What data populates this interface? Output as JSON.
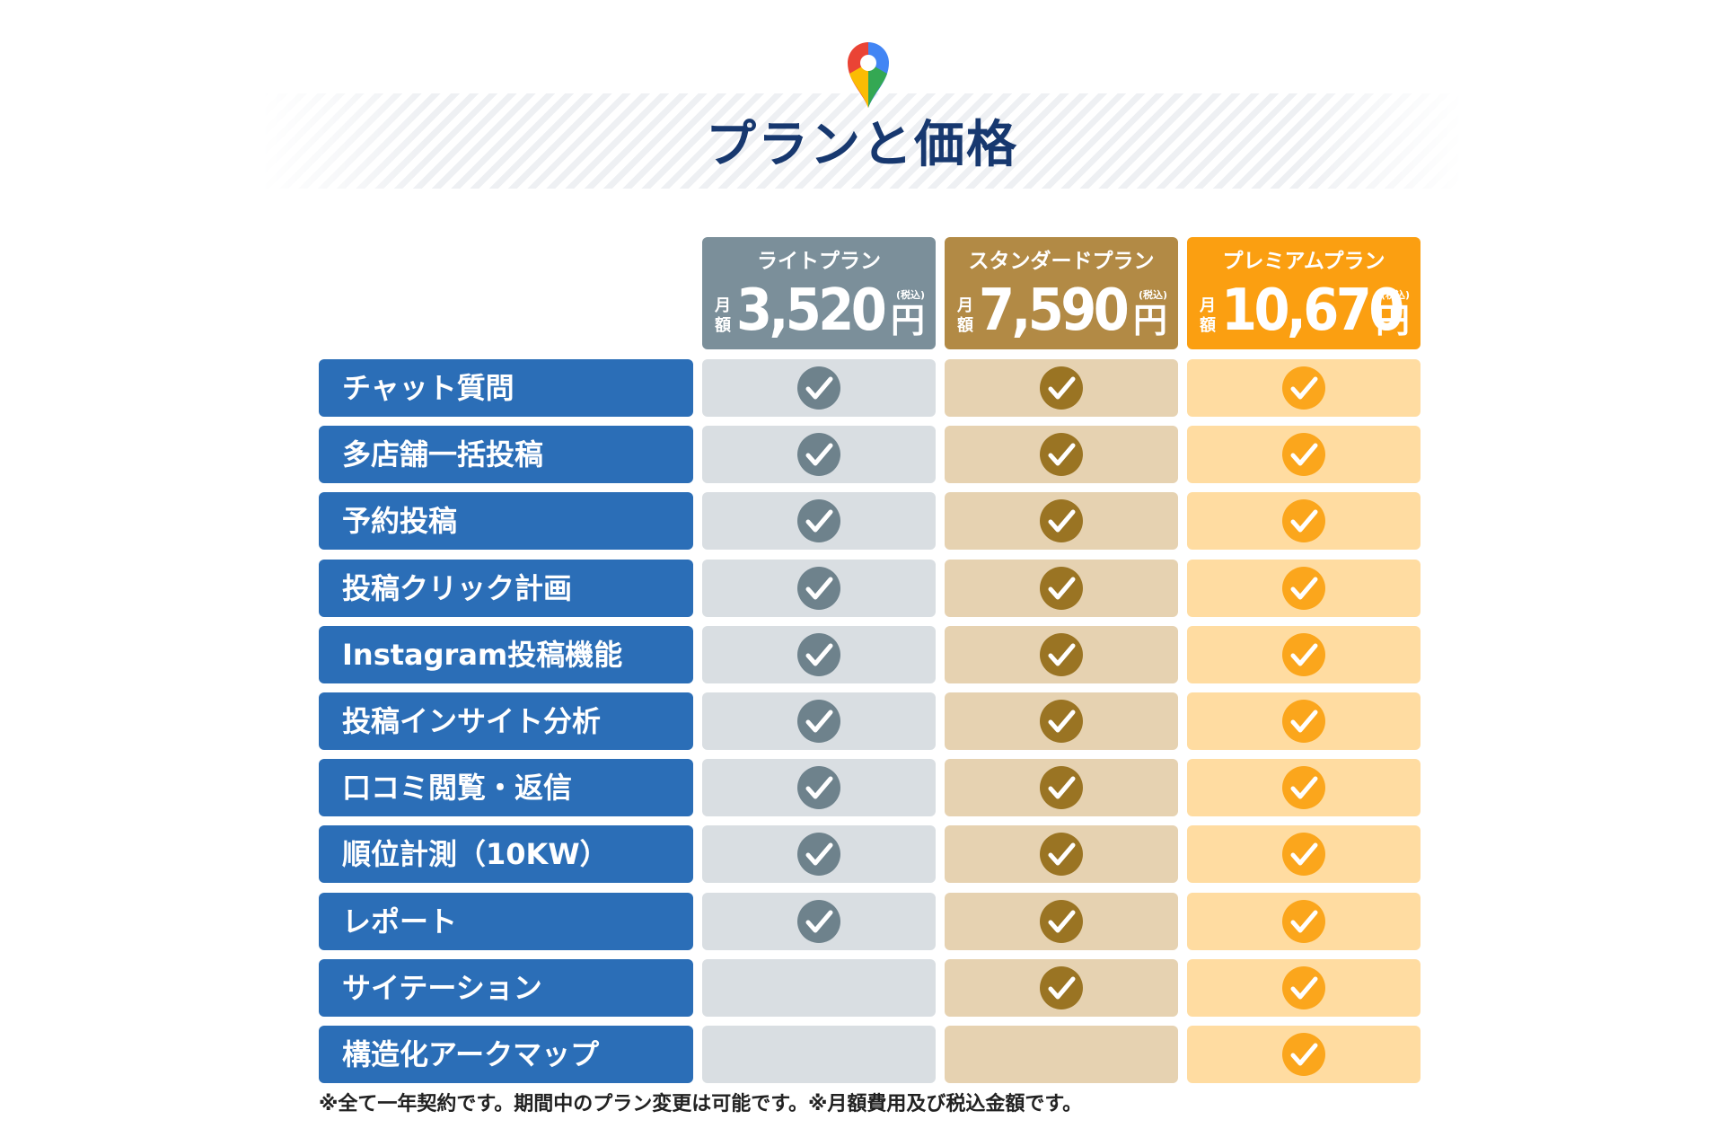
{
  "title": "プランと価格",
  "icons": {
    "header": "map-pin-icon",
    "check": "check-circle-icon"
  },
  "colors": {
    "title": "#17386f",
    "feature_label_bg": "#2b6eb7",
    "light": {
      "header": "#7b8f9a",
      "cell": "#d9dee2",
      "check": "#6e828c"
    },
    "standard": {
      "header": "#b28a45",
      "cell": "#e6d2b1",
      "check": "#9a7423"
    },
    "premium": {
      "header": "#fb9f11",
      "cell": "#ffdca1",
      "check": "#fba61c"
    }
  },
  "plans": [
    {
      "key": "light",
      "name": "ライトプラン",
      "monthly": "月額",
      "price": "3,520",
      "unit": "円",
      "tax": "(税込)"
    },
    {
      "key": "standard",
      "name": "スタンダードプラン",
      "monthly": "月額",
      "price": "7,590",
      "unit": "円",
      "tax": "(税込)"
    },
    {
      "key": "premium",
      "name": "プレミアムプラン",
      "monthly": "月額",
      "price": "10,670",
      "unit": "円",
      "tax": "(税込)"
    }
  ],
  "features": [
    {
      "label": "チャット質問",
      "included": [
        true,
        true,
        true
      ]
    },
    {
      "label": "多店舗一括投稿",
      "included": [
        true,
        true,
        true
      ]
    },
    {
      "label": "予約投稿",
      "included": [
        true,
        true,
        true
      ]
    },
    {
      "label": "投稿クリック計画",
      "included": [
        true,
        true,
        true
      ]
    },
    {
      "label": "Instagram投稿機能",
      "included": [
        true,
        true,
        true
      ]
    },
    {
      "label": "投稿インサイト分析",
      "included": [
        true,
        true,
        true
      ]
    },
    {
      "label": "口コミ閲覧・返信",
      "included": [
        true,
        true,
        true
      ]
    },
    {
      "label": "順位計測（10KW）",
      "included": [
        true,
        true,
        true
      ]
    },
    {
      "label": "レポート",
      "included": [
        true,
        true,
        true
      ]
    },
    {
      "label": "サイテーション",
      "included": [
        false,
        true,
        true
      ]
    },
    {
      "label": "構造化アークマップ",
      "included": [
        false,
        false,
        true
      ]
    }
  ],
  "footnote": "※全て一年契約です。期間中のプラン変更は可能です。※月額費用及び税込金額です。"
}
